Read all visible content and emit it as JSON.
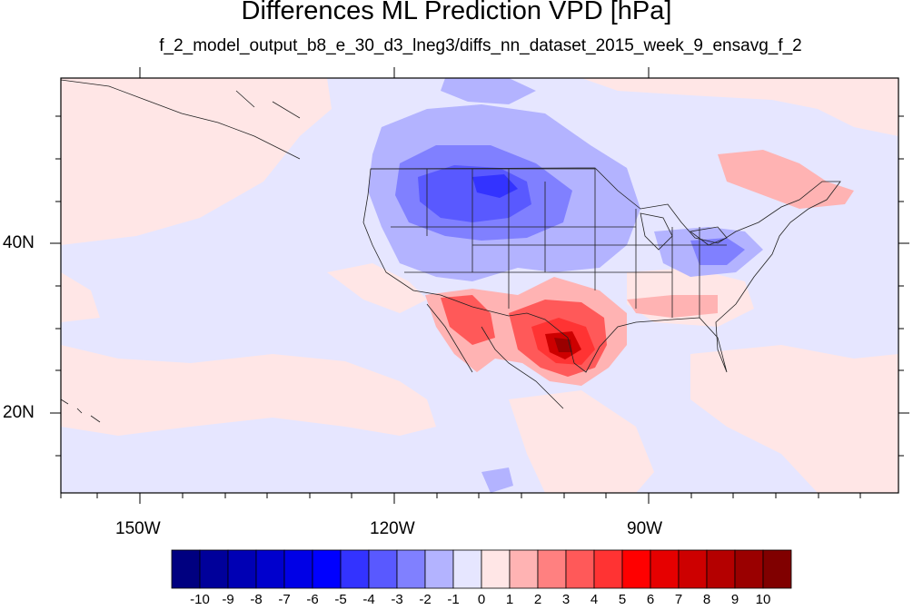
{
  "title": "Differences ML Prediction VPD [hPa]",
  "subtitle": "f_2_model_output_b8_e_30_d3_lneg3/diffs_nn_dataset_2015_week_9_ensavg_f_2",
  "axes": {
    "lat_ticks": [
      "40N",
      "20N"
    ],
    "lon_ticks": [
      "150W",
      "120W",
      "90W"
    ]
  },
  "colorbar": {
    "labels": [
      "-10",
      "-9",
      "-8",
      "-7",
      "-6",
      "-5",
      "-4",
      "-3",
      "-2",
      "-1",
      "0",
      "1",
      "2",
      "3",
      "4",
      "5",
      "6",
      "7",
      "8",
      "9",
      "10"
    ],
    "colors": [
      "#000080",
      "#00009a",
      "#0000b4",
      "#0000cd",
      "#0000e6",
      "#0000ff",
      "#3333ff",
      "#5959ff",
      "#8080ff",
      "#b3b3ff",
      "#e6e6ff",
      "#ffe6e6",
      "#ffb3b3",
      "#ff8080",
      "#ff5959",
      "#ff3333",
      "#ff0000",
      "#e60000",
      "#cd0000",
      "#b40000",
      "#9a0000",
      "#800000"
    ]
  },
  "map_colors": {
    "background_blue": "#e6e6ff",
    "light_pink": "#ffe6e6",
    "pink": "#ffb3b3",
    "light_blue": "#b3b3ff",
    "mid_blue": "#8080ff",
    "blue": "#5959ff",
    "red": "#ff5959",
    "deep_red": "#cd0000",
    "dark_red": "#9a0000"
  }
}
